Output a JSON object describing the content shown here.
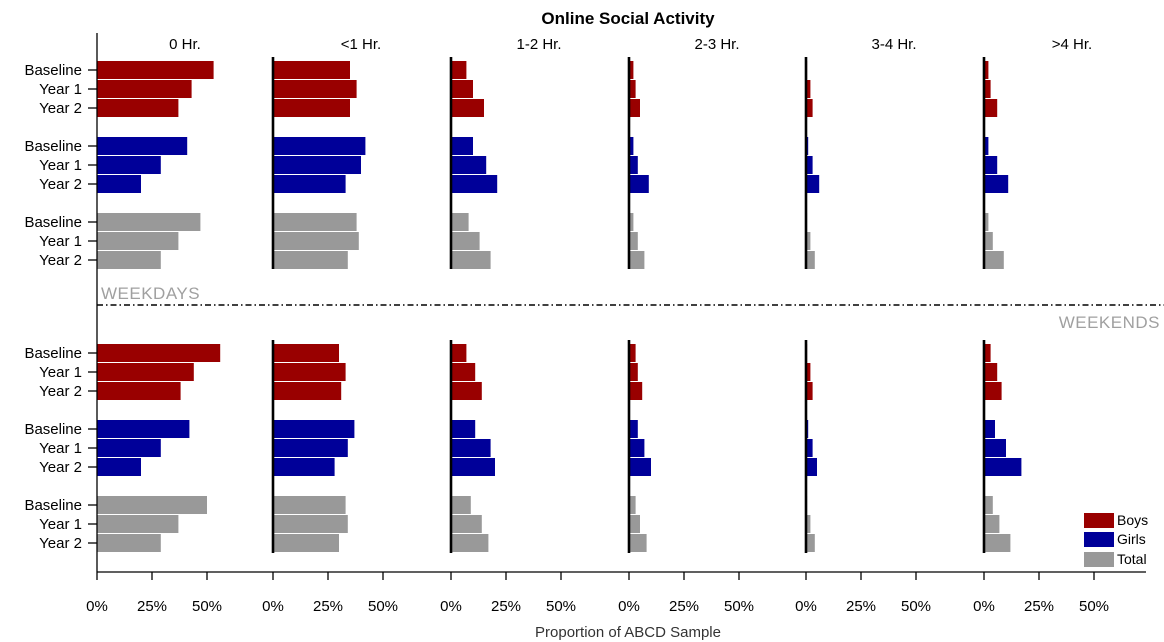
{
  "chart_data": {
    "type": "bar",
    "orientation": "horizontal",
    "title": "Online Social Activity",
    "xlabel": "Proportion of ABCD Sample",
    "panels": [
      "0 Hr.",
      "<1 Hr.",
      "1-2 Hr.",
      "2-3 Hr.",
      "3-4 Hr.",
      ">4 Hr."
    ],
    "x_ticks": [
      "0%",
      "25%",
      "50%"
    ],
    "xlim": [
      0,
      0.5
    ],
    "categories": [
      "Baseline",
      "Year 1",
      "Year 2"
    ],
    "groups": [
      "Boys",
      "Girls",
      "Total"
    ],
    "colors": {
      "Boys": "#990000",
      "Girls": "#000099",
      "Total": "#999999"
    },
    "legend": {
      "position": "bottom-right",
      "entries": [
        {
          "name": "Boys",
          "color": "#990000"
        },
        {
          "name": "Girls",
          "color": "#000099"
        },
        {
          "name": "Total",
          "color": "#999999"
        }
      ]
    },
    "periods": [
      {
        "name": "WEEKDAYS",
        "data": {
          "Boys": [
            [
              0.53,
              0.43,
              0.37
            ],
            [
              0.35,
              0.38,
              0.35
            ],
            [
              0.07,
              0.1,
              0.15
            ],
            [
              0.02,
              0.03,
              0.05
            ],
            [
              0.005,
              0.02,
              0.03
            ],
            [
              0.02,
              0.03,
              0.06
            ]
          ],
          "Girls": [
            [
              0.41,
              0.29,
              0.2
            ],
            [
              0.42,
              0.4,
              0.33
            ],
            [
              0.1,
              0.16,
              0.21
            ],
            [
              0.02,
              0.04,
              0.09
            ],
            [
              0.01,
              0.03,
              0.06
            ],
            [
              0.02,
              0.06,
              0.11
            ]
          ],
          "Total": [
            [
              0.47,
              0.37,
              0.29
            ],
            [
              0.38,
              0.39,
              0.34
            ],
            [
              0.08,
              0.13,
              0.18
            ],
            [
              0.02,
              0.04,
              0.07
            ],
            [
              0.005,
              0.02,
              0.04
            ],
            [
              0.02,
              0.04,
              0.09
            ]
          ]
        }
      },
      {
        "name": "WEEKENDS",
        "data": {
          "Boys": [
            [
              0.56,
              0.44,
              0.38
            ],
            [
              0.3,
              0.33,
              0.31
            ],
            [
              0.07,
              0.11,
              0.14
            ],
            [
              0.03,
              0.04,
              0.06
            ],
            [
              0.005,
              0.02,
              0.03
            ],
            [
              0.03,
              0.06,
              0.08
            ]
          ],
          "Girls": [
            [
              0.42,
              0.29,
              0.2
            ],
            [
              0.37,
              0.34,
              0.28
            ],
            [
              0.11,
              0.18,
              0.2
            ],
            [
              0.04,
              0.07,
              0.1
            ],
            [
              0.01,
              0.03,
              0.05
            ],
            [
              0.05,
              0.1,
              0.17
            ]
          ],
          "Total": [
            [
              0.5,
              0.37,
              0.29
            ],
            [
              0.33,
              0.34,
              0.3
            ],
            [
              0.09,
              0.14,
              0.17
            ],
            [
              0.03,
              0.05,
              0.08
            ],
            [
              0.005,
              0.02,
              0.04
            ],
            [
              0.04,
              0.07,
              0.12
            ]
          ]
        }
      }
    ]
  }
}
